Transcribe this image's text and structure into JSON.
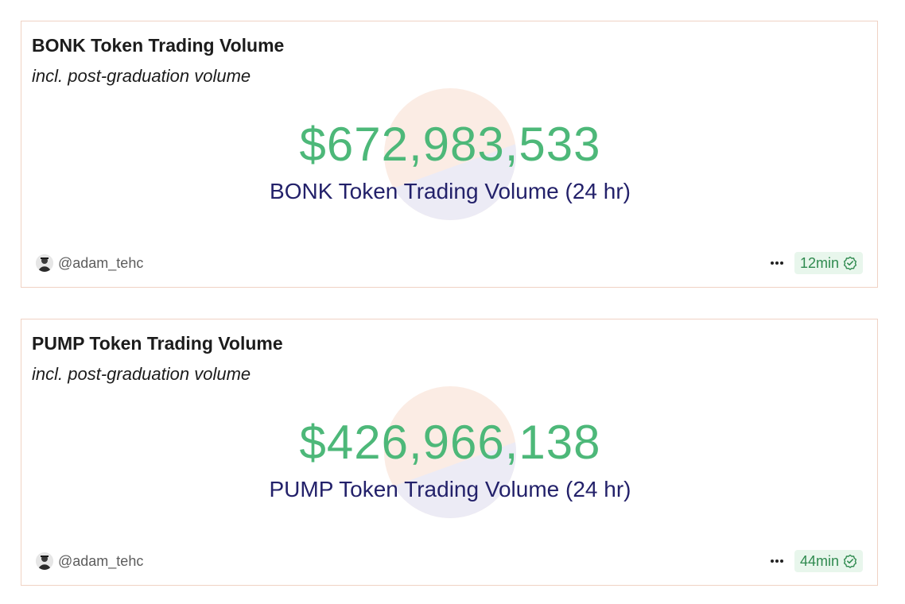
{
  "cards": [
    {
      "title": "BONK Token Trading Volume",
      "subtitle": "incl. post-graduation volume",
      "value": "$672,983,533",
      "caption": "BONK Token Trading Volume (24 hr)",
      "author": "@adam_tehc",
      "age": "12min",
      "more_icon": "more-icon",
      "badge_icon": "verified-check-icon"
    },
    {
      "title": "PUMP Token Trading Volume",
      "subtitle": "incl. post-graduation volume",
      "value": "$426,966,138",
      "caption": "PUMP Token Trading Volume (24 hr)",
      "author": "@adam_tehc",
      "age": "44min",
      "more_icon": "more-icon",
      "badge_icon": "verified-check-icon"
    }
  ],
  "colors": {
    "value": "#4db879",
    "caption": "#23216a",
    "border": "#f0d2c4",
    "badge_bg": "#e8f6ec",
    "badge_text": "#2f8a4f",
    "watermark_top": "#fbece4",
    "watermark_bottom": "#ecebf5"
  }
}
